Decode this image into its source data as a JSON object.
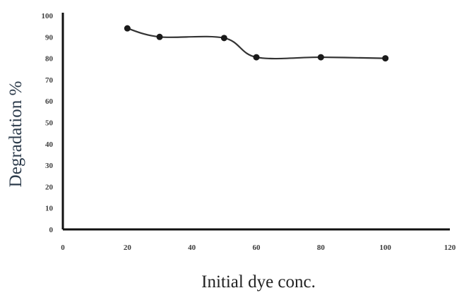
{
  "chart_data": {
    "type": "line",
    "title": "",
    "xlabel": "Initial dye conc.",
    "ylabel": "Degradation %",
    "xlim": [
      0,
      120
    ],
    "ylim": [
      0,
      100
    ],
    "xticks": [
      0,
      20,
      40,
      60,
      80,
      100,
      120
    ],
    "yticks": [
      0,
      10,
      20,
      30,
      40,
      50,
      60,
      70,
      80,
      90,
      100
    ],
    "grid": false,
    "legend": "none",
    "smooth": true,
    "series": [
      {
        "x": [
          20,
          30,
          50,
          60,
          80,
          100
        ],
        "y": [
          94,
          90,
          89.5,
          80.5,
          80.5,
          80
        ],
        "color": "#333333",
        "marker": "circle"
      }
    ]
  }
}
